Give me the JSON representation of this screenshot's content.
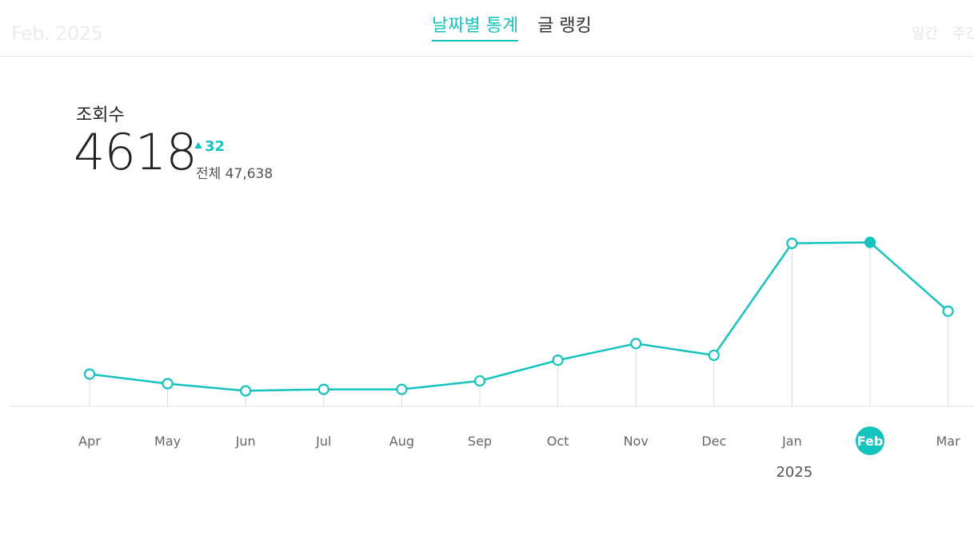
{
  "header": {
    "date_label": "Feb. 2025",
    "tabs": [
      {
        "label": "날짜별 통계",
        "active": true
      },
      {
        "label": "글 랭킹",
        "active": false
      }
    ],
    "period_tabs": [
      "일간",
      "주간"
    ]
  },
  "metric": {
    "title": "조회수",
    "value": "4618",
    "delta": "32",
    "total_label": "전체 47,638"
  },
  "colors": {
    "accent": "#15c3be",
    "axis": "#e6e6e6",
    "stem": "#d9d9d9",
    "tick_label": "#666666"
  },
  "chart_data": {
    "type": "line",
    "categories": [
      "Apr",
      "May",
      "Jun",
      "Jul",
      "Aug",
      "Sep",
      "Oct",
      "Nov",
      "Dec",
      "Jan",
      "Feb",
      "Mar"
    ],
    "values": [
      910,
      640,
      440,
      480,
      480,
      720,
      1300,
      1770,
      1440,
      4590,
      4618,
      2680
    ],
    "selected_index": 10,
    "year_label": "2025",
    "year_label_index": 9,
    "ylim": [
      0,
      6000
    ],
    "grid": false,
    "legend": "none"
  }
}
